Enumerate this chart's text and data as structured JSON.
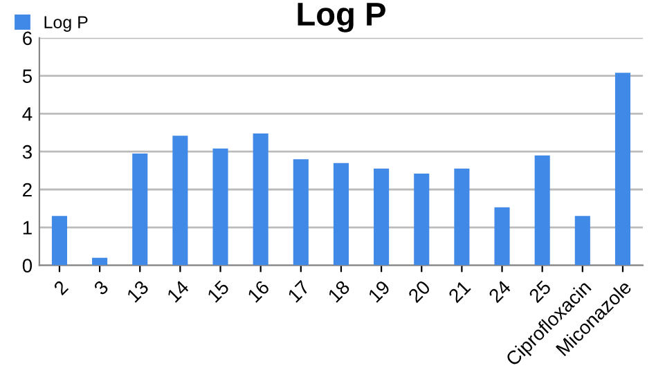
{
  "chart_data": {
    "type": "bar",
    "title": "Log P",
    "categories": [
      "2",
      "3",
      "13",
      "14",
      "15",
      "16",
      "17",
      "18",
      "19",
      "20",
      "21",
      "24",
      "25",
      "Ciprofloxacin",
      "Miconazole"
    ],
    "series": [
      {
        "name": "Log P",
        "color": "#4189e6",
        "values": [
          1.3,
          0.2,
          2.95,
          3.42,
          3.08,
          3.48,
          2.8,
          2.7,
          2.55,
          2.42,
          2.55,
          1.53,
          2.9,
          1.3,
          5.08
        ]
      }
    ],
    "ylim": [
      0,
      6
    ],
    "yticks": [
      0,
      1,
      2,
      3,
      4,
      5,
      6
    ],
    "grid": "y",
    "legend": "top left"
  }
}
